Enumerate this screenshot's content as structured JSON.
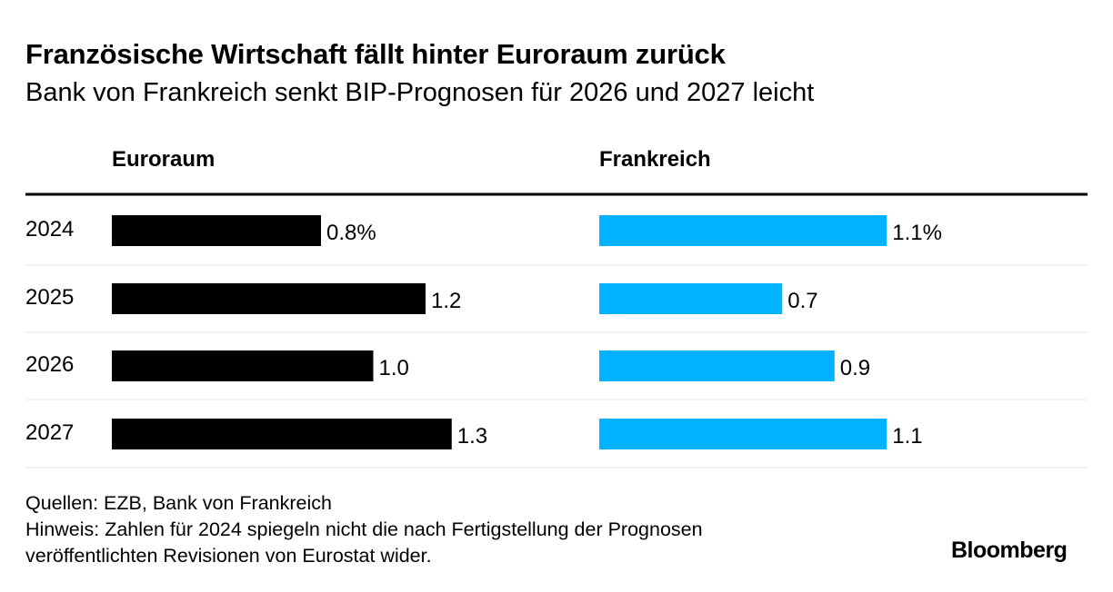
{
  "header": {
    "title": "Französische Wirtschaft fällt hinter Euroraum zurück",
    "subtitle": "Bank von Frankreich senkt BIP-Prognosen für 2026 und 2027 leicht"
  },
  "chart_data": {
    "type": "bar",
    "orientation": "horizontal",
    "categories": [
      "2024",
      "2025",
      "2026",
      "2027"
    ],
    "series": [
      {
        "name": "Euroraum",
        "values": [
          0.8,
          1.2,
          1.0,
          1.3
        ],
        "labels": [
          "0.8%",
          "1.2",
          "1.0",
          "1.3"
        ],
        "color": "#000000"
      },
      {
        "name": "Frankreich",
        "values": [
          1.1,
          0.7,
          0.9,
          1.1
        ],
        "labels": [
          "1.1%",
          "0.7",
          "0.9",
          "1.1"
        ],
        "color": "#00b2ff"
      }
    ],
    "unit": "%",
    "grid": false
  },
  "footer": {
    "sources": "Quellen: EZB, Bank von Frankreich",
    "note_line1": "Hinweis: Zahlen für 2024 spiegeln nicht die nach Fertigstellung der Prognosen",
    "note_line2": "veröffentlichten Revisionen von Eurostat wider.",
    "logo": "Bloomberg"
  }
}
